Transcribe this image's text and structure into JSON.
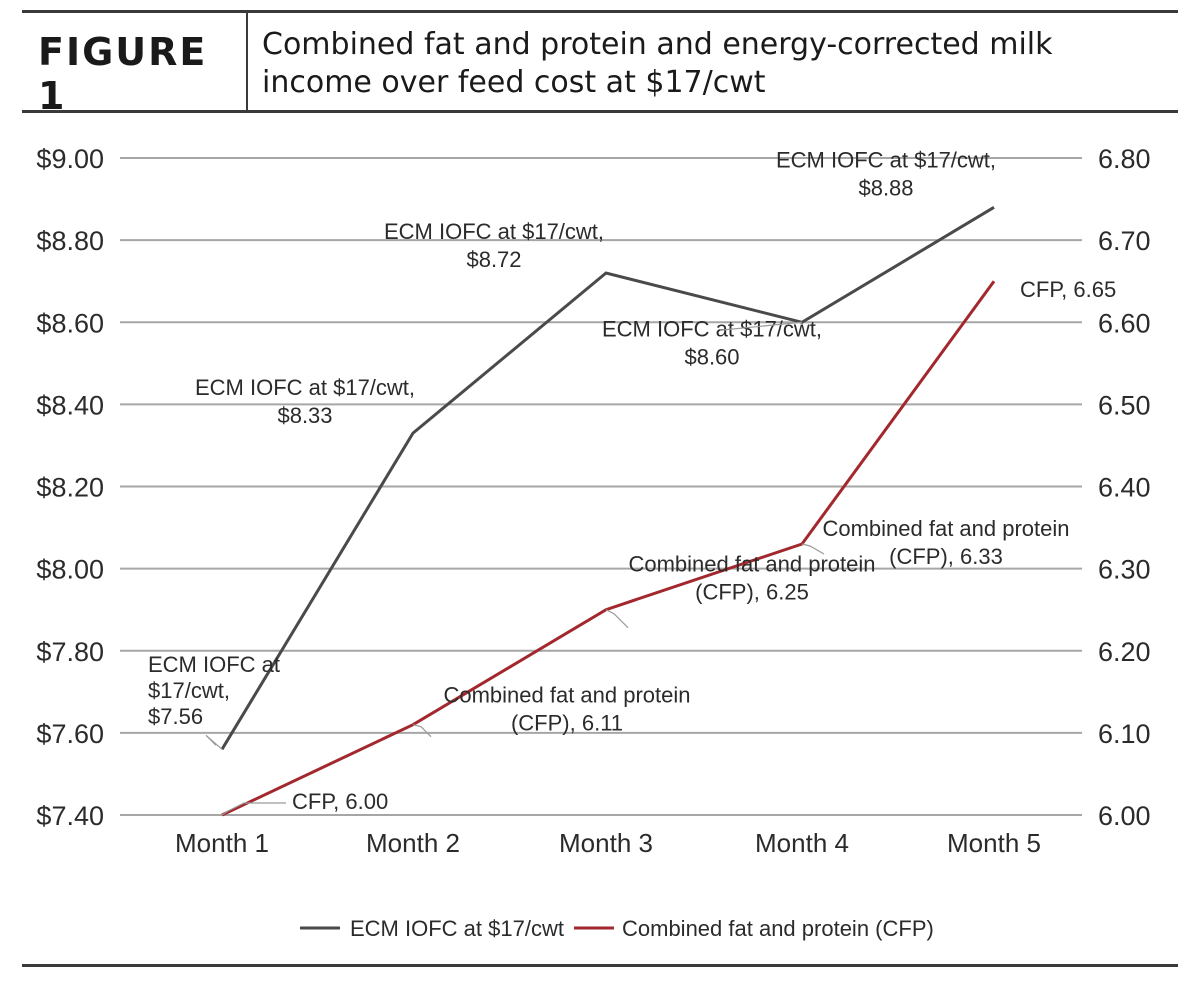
{
  "figure": {
    "label": "FIGURE 1",
    "title": "Combined fat and protein and energy-corrected milk income over feed cost at $17/cwt"
  },
  "colors": {
    "ecm_line": "#4a4a4a",
    "cfp_line": "#a3282d",
    "grid": "#a6a6a6",
    "rule": "#3a3a3a",
    "text": "#2b2b2b"
  },
  "chart_data": {
    "type": "line",
    "title": "Combined fat and protein and energy-corrected milk income over feed cost at $17/cwt",
    "categories": [
      "Month 1",
      "Month 2",
      "Month 3",
      "Month 4",
      "Month 5"
    ],
    "y_left": {
      "ylim": [
        7.4,
        9.0
      ],
      "ticks": [
        "$7.40",
        "$7.60",
        "$7.80",
        "$8.00",
        "$8.20",
        "$8.40",
        "$8.60",
        "$8.80",
        "$9.00"
      ],
      "tick_values": [
        7.4,
        7.6,
        7.8,
        8.0,
        8.2,
        8.4,
        8.6,
        8.8,
        9.0
      ]
    },
    "y_right": {
      "ylim": [
        6.0,
        6.8
      ],
      "ticks": [
        "6.00",
        "6.10",
        "6.20",
        "6.30",
        "6.40",
        "6.50",
        "6.60",
        "6.70",
        "6.80"
      ],
      "tick_values": [
        6.0,
        6.1,
        6.2,
        6.3,
        6.4,
        6.5,
        6.6,
        6.7,
        6.8
      ]
    },
    "grid": true,
    "legend_position": "bottom",
    "series": [
      {
        "name": "ECM IOFC at $17/cwt",
        "axis": "left",
        "values": [
          7.56,
          8.33,
          8.72,
          8.6,
          8.88
        ],
        "labels": [
          [
            "ECM IOFC at",
            "$17/cwt,",
            "$7.56"
          ],
          [
            "ECM IOFC at $17/cwt,",
            "$8.33"
          ],
          [
            "ECM IOFC at $17/cwt,",
            "$8.72"
          ],
          [
            "ECM IOFC at $17/cwt,",
            "$8.60"
          ],
          [
            "ECM IOFC at $17/cwt,",
            "$8.88"
          ]
        ]
      },
      {
        "name": "Combined fat and protein (CFP)",
        "axis": "right",
        "values": [
          6.0,
          6.11,
          6.25,
          6.33,
          6.65
        ],
        "labels": [
          [
            "CFP, 6.00"
          ],
          [
            "Combined fat and protein",
            "(CFP), 6.11"
          ],
          [
            "Combined fat and protein",
            "(CFP), 6.25"
          ],
          [
            "Combined fat and protein",
            "(CFP), 6.33"
          ],
          [
            "CFP, 6.65"
          ]
        ]
      }
    ]
  }
}
